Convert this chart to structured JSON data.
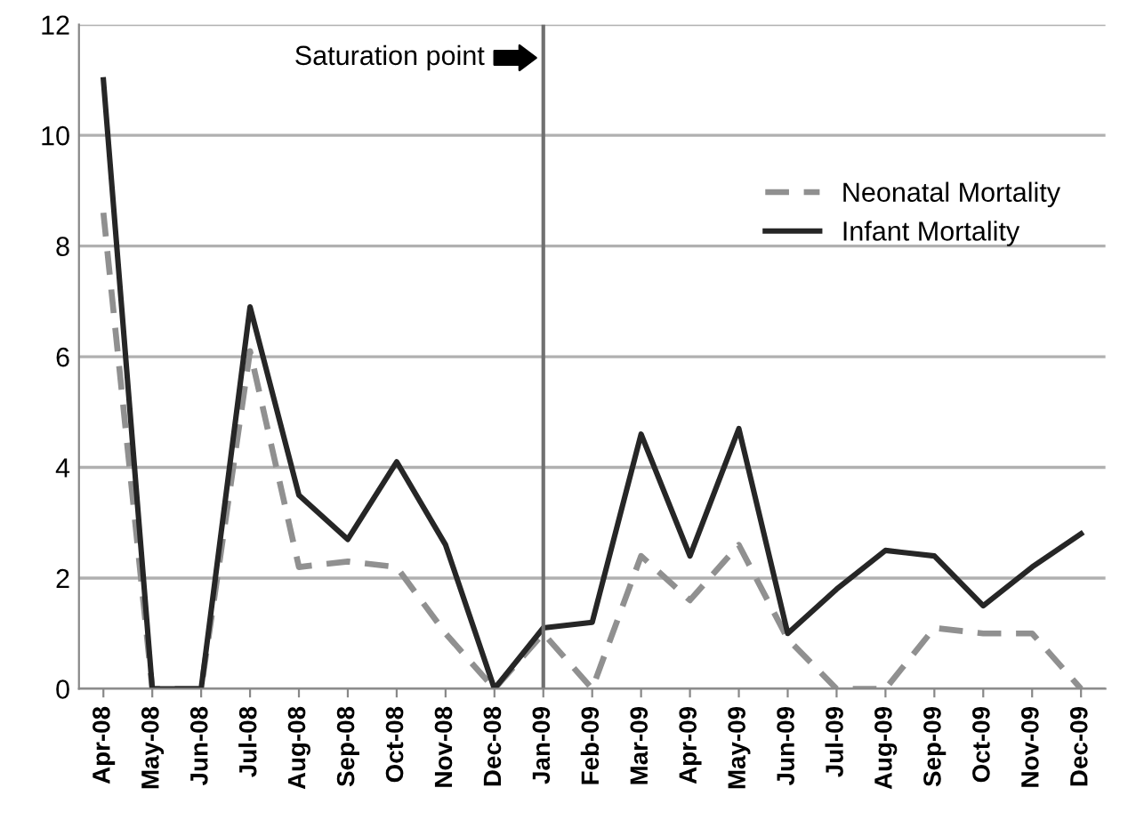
{
  "chart_data": {
    "type": "line",
    "categories": [
      "Apr-08",
      "May-08",
      "Jun-08",
      "Jul-08",
      "Aug-08",
      "Sep-08",
      "Oct-08",
      "Nov-08",
      "Dec-08",
      "Jan-09",
      "Feb-09",
      "Mar-09",
      "Apr-09",
      "May-09",
      "Jun-09",
      "Jul-09",
      "Aug-09",
      "Sep-09",
      "Oct-09",
      "Nov-09",
      "Dec-09"
    ],
    "series": [
      {
        "name": "Neonatal Mortality",
        "color": "#909090",
        "line_style": "dashed",
        "values": [
          8.6,
          0,
          0,
          6.1,
          2.2,
          2.3,
          2.2,
          1.0,
          0,
          1.0,
          0,
          2.4,
          1.6,
          2.6,
          0.9,
          0,
          0,
          1.1,
          1.0,
          1.0,
          0
        ]
      },
      {
        "name": "Infant Mortality",
        "color": "#262626",
        "line_style": "solid",
        "values": [
          11,
          0,
          0,
          6.9,
          3.5,
          2.7,
          4.1,
          2.6,
          0,
          1.1,
          1.2,
          4.6,
          2.4,
          4.7,
          1.0,
          1.8,
          2.5,
          2.4,
          1.5,
          2.2,
          2.8
        ]
      }
    ],
    "ylim": [
      0,
      12
    ],
    "yticks": [
      0,
      2,
      4,
      6,
      8,
      10,
      12
    ],
    "grid": "y",
    "legend": "top right",
    "marker": "none",
    "ref_lines": [
      {
        "axis": "x",
        "value": "Jan-09",
        "label": "Saturation point",
        "color": "#707070",
        "line_style": "solid"
      }
    ]
  }
}
